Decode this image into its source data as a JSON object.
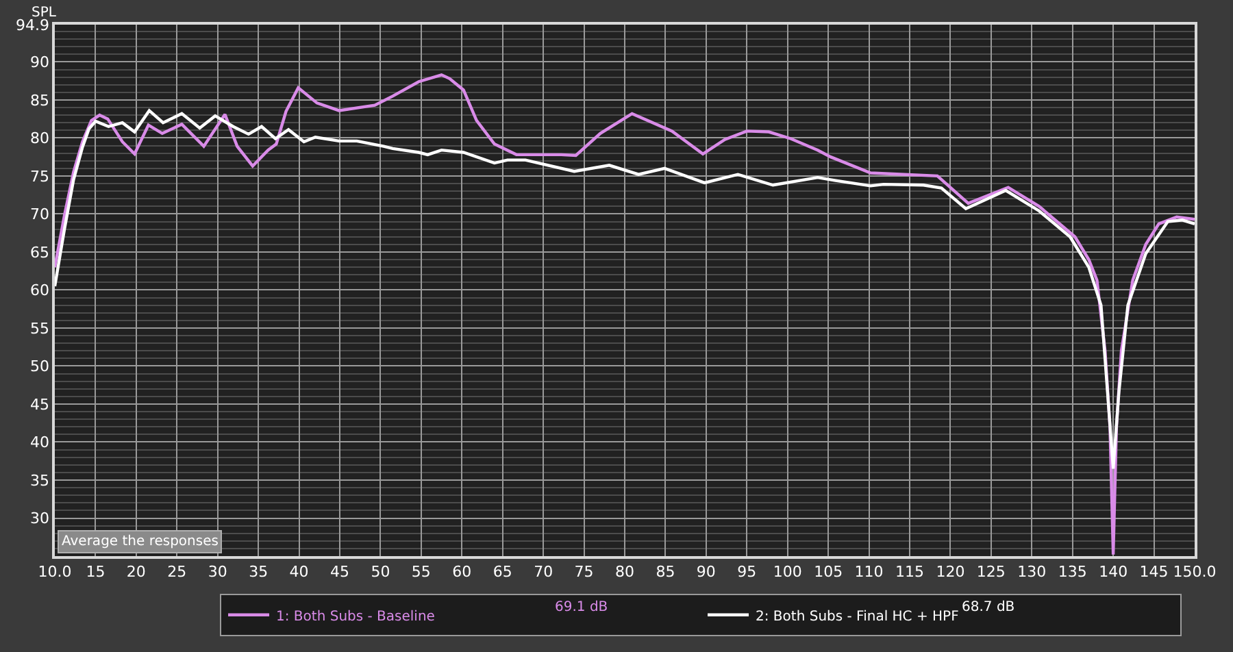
{
  "chart_data": {
    "type": "line",
    "ylabel": "SPL",
    "xlim": [
      10,
      150
    ],
    "ylim": [
      25,
      94.9
    ],
    "xticks": [
      {
        "value": 10,
        "label": "10.0"
      },
      15,
      20,
      25,
      30,
      35,
      40,
      45,
      50,
      55,
      60,
      65,
      70,
      75,
      80,
      85,
      90,
      95,
      100,
      105,
      110,
      115,
      120,
      125,
      130,
      135,
      140,
      145,
      {
        "value": 150,
        "label": "150.0"
      }
    ],
    "yticks": [
      {
        "value": 26,
        "label": null
      },
      {
        "value": 27,
        "label": null
      },
      {
        "value": 28,
        "label": null
      },
      {
        "value": 29,
        "label": null
      },
      30,
      {
        "value": 31,
        "label": null
      },
      {
        "value": 32,
        "label": null
      },
      {
        "value": 33,
        "label": null
      },
      {
        "value": 34,
        "label": null
      },
      35,
      {
        "value": 36,
        "label": null
      },
      {
        "value": 37,
        "label": null
      },
      {
        "value": 38,
        "label": null
      },
      {
        "value": 39,
        "label": null
      },
      40,
      {
        "value": 41,
        "label": null
      },
      {
        "value": 42,
        "label": null
      },
      {
        "value": 43,
        "label": null
      },
      {
        "value": 44,
        "label": null
      },
      45,
      {
        "value": 46,
        "label": null
      },
      {
        "value": 47,
        "label": null
      },
      {
        "value": 48,
        "label": null
      },
      {
        "value": 49,
        "label": null
      },
      50,
      {
        "value": 51,
        "label": null
      },
      {
        "value": 52,
        "label": null
      },
      {
        "value": 53,
        "label": null
      },
      {
        "value": 54,
        "label": null
      },
      55,
      {
        "value": 56,
        "label": null
      },
      {
        "value": 57,
        "label": null
      },
      {
        "value": 58,
        "label": null
      },
      {
        "value": 59,
        "label": null
      },
      60,
      {
        "value": 61,
        "label": null
      },
      {
        "value": 62,
        "label": null
      },
      {
        "value": 63,
        "label": null
      },
      {
        "value": 64,
        "label": null
      },
      65,
      {
        "value": 66,
        "label": null
      },
      {
        "value": 67,
        "label": null
      },
      {
        "value": 68,
        "label": null
      },
      {
        "value": 69,
        "label": null
      },
      70,
      {
        "value": 71,
        "label": null
      },
      {
        "value": 72,
        "label": null
      },
      {
        "value": 73,
        "label": null
      },
      {
        "value": 74,
        "label": null
      },
      75,
      {
        "value": 76,
        "label": null
      },
      {
        "value": 77,
        "label": null
      },
      {
        "value": 78,
        "label": null
      },
      {
        "value": 79,
        "label": null
      },
      80,
      {
        "value": 81,
        "label": null
      },
      {
        "value": 82,
        "label": null
      },
      {
        "value": 83,
        "label": null
      },
      {
        "value": 84,
        "label": null
      },
      85,
      {
        "value": 86,
        "label": null
      },
      {
        "value": 87,
        "label": null
      },
      {
        "value": 88,
        "label": null
      },
      {
        "value": 89,
        "label": null
      },
      90,
      {
        "value": 91,
        "label": null
      },
      {
        "value": 92,
        "label": null
      },
      {
        "value": 93,
        "label": null
      },
      {
        "value": 94,
        "label": null
      },
      {
        "value": 94.9,
        "label": "94.9"
      }
    ],
    "grid": true,
    "legend": "bottom",
    "series": [
      {
        "name": "1: Both Subs - Baseline",
        "color": "#d98be8",
        "x": [
          10,
          11.2,
          12.3,
          13.4,
          14.5,
          15.5,
          16.5,
          18.3,
          19.8,
          21.5,
          23.2,
          25.6,
          28.3,
          30.9,
          32.4,
          34.3,
          36.2,
          37.2,
          38.4,
          39.9,
          42.2,
          44.9,
          49.3,
          51.5,
          54.7,
          57.5,
          58.5,
          60.2,
          61.8,
          64.0,
          66.7,
          72.2,
          74.0,
          77.0,
          80.9,
          85.8,
          89.6,
          92.3,
          95.0,
          97.7,
          100.4,
          103.7,
          105.3,
          110.2,
          118.4,
          122.2,
          127.1,
          130.9,
          135.3,
          137.0,
          138.0,
          139.0,
          139.6,
          140.0,
          140.4,
          141.0,
          142.4,
          144.0,
          145.6,
          147.8,
          150.0
        ],
        "values": [
          63.0,
          69.9,
          75.5,
          79.5,
          82.3,
          83.0,
          82.5,
          79.5,
          77.9,
          81.7,
          80.6,
          81.8,
          78.9,
          83.1,
          78.9,
          76.3,
          78.4,
          79.2,
          83.5,
          86.6,
          84.6,
          83.6,
          84.3,
          85.5,
          87.4,
          88.3,
          87.8,
          86.3,
          82.3,
          79.2,
          77.8,
          77.8,
          77.7,
          80.6,
          83.2,
          80.9,
          77.9,
          79.8,
          80.9,
          80.8,
          79.9,
          78.4,
          77.5,
          75.4,
          75.0,
          71.4,
          73.5,
          71.0,
          67.0,
          64.0,
          61.3,
          52.0,
          42.0,
          25.2,
          42.0,
          52.0,
          61.3,
          66.0,
          68.7,
          69.6,
          69.3
        ]
      },
      {
        "name": "2: Both Subs - Final HC + HPF",
        "color": "#ffffff",
        "x": [
          10,
          11.2,
          12.3,
          13.4,
          14.2,
          15.0,
          16.6,
          18.3,
          19.8,
          21.6,
          23.3,
          25.6,
          27.8,
          29.7,
          31.9,
          33.8,
          35.4,
          37.1,
          38.7,
          40.6,
          42.0,
          44.9,
          47.1,
          50.4,
          51.5,
          54.7,
          55.8,
          57.5,
          60.2,
          64.0,
          65.6,
          67.8,
          73.8,
          78.1,
          81.7,
          84.9,
          89.8,
          93.9,
          98.2,
          103.7,
          105.9,
          110.2,
          111.8,
          116.7,
          118.9,
          121.9,
          126.8,
          130.9,
          134.7,
          137.0,
          138.5,
          139.3,
          140.0,
          140.7,
          141.8,
          144.0,
          146.7,
          148.5,
          150.0
        ],
        "values": [
          60.5,
          68.1,
          74.5,
          78.8,
          81.2,
          82.2,
          81.5,
          82.0,
          80.8,
          83.6,
          82.0,
          83.2,
          81.3,
          82.9,
          81.5,
          80.5,
          81.5,
          79.9,
          81.1,
          79.5,
          80.1,
          79.6,
          79.6,
          78.9,
          78.6,
          78.1,
          77.8,
          78.4,
          78.1,
          76.7,
          77.1,
          77.1,
          75.6,
          76.4,
          75.2,
          76.0,
          74.1,
          75.2,
          73.8,
          74.8,
          74.4,
          73.7,
          73.9,
          73.8,
          73.4,
          70.7,
          73.1,
          70.4,
          67.0,
          63.0,
          58.0,
          46.6,
          36.5,
          46.6,
          58.0,
          64.8,
          69.0,
          69.2,
          68.7
        ]
      }
    ],
    "annotations": [
      "Average the responses",
      "69.1 dB",
      "68.7 dB"
    ]
  }
}
